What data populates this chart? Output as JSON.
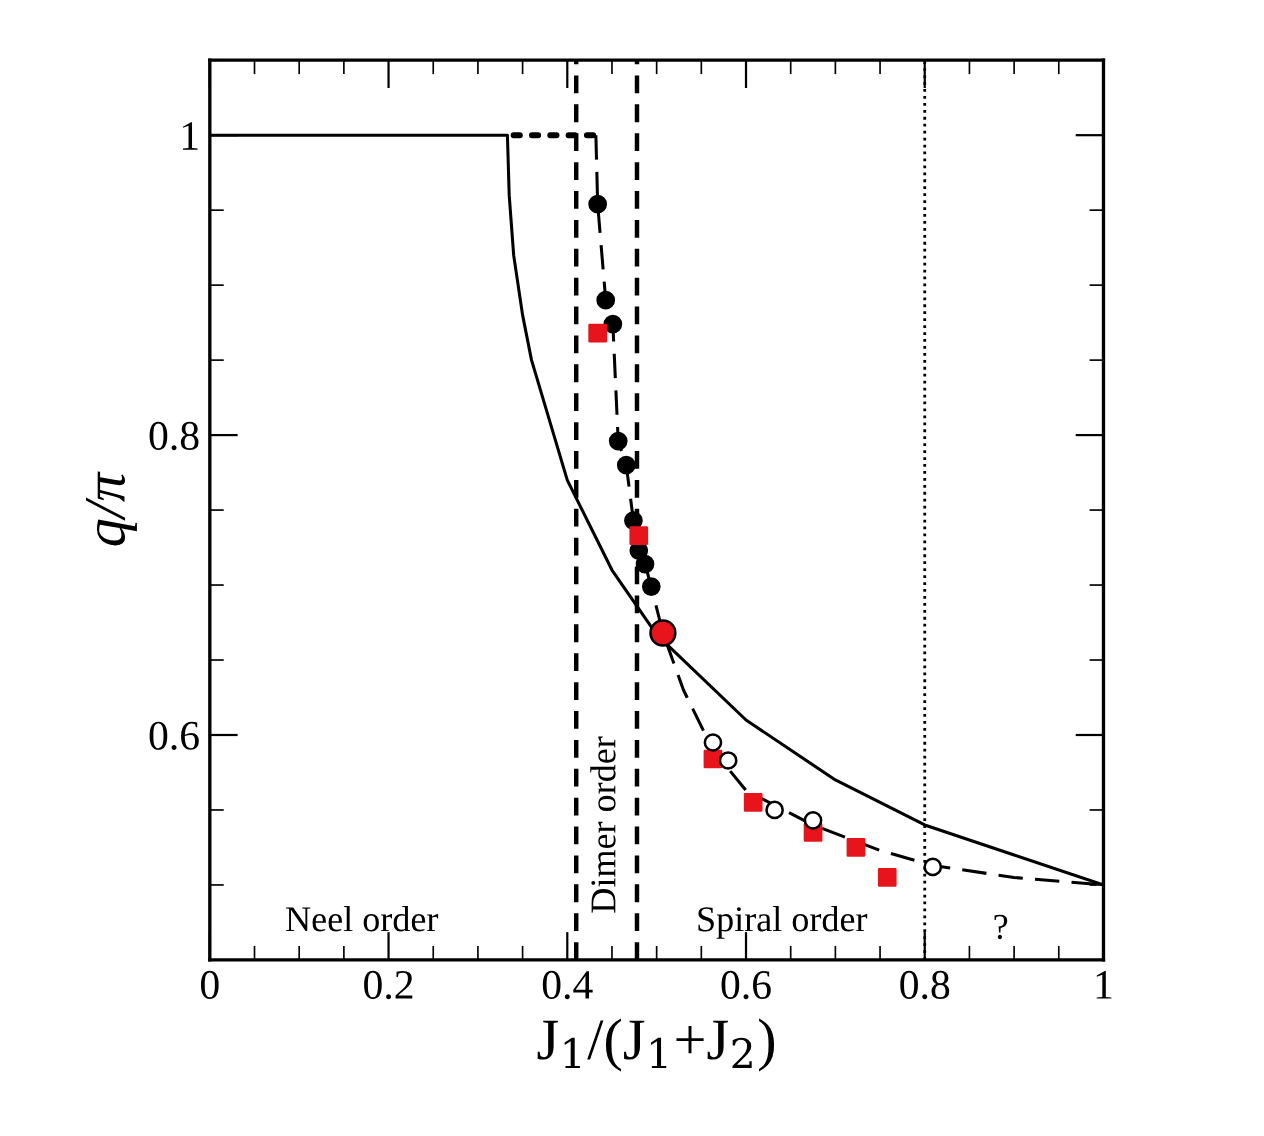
{
  "chart_data": {
    "type": "line",
    "xlabel": "J$_{1}$/(J$_{1}$+J$_{2}$)",
    "ylabel": "q/π",
    "xlim": [
      0,
      1
    ],
    "ylim": [
      0.45,
      1.05
    ],
    "xticks": [
      0,
      {
        "value": 0.05,
        "label": null
      },
      {
        "value": 0.1,
        "label": null
      },
      {
        "value": 0.15,
        "label": null
      },
      0.2,
      {
        "value": 0.25,
        "label": null
      },
      {
        "value": 0.3,
        "label": null
      },
      {
        "value": 0.35,
        "label": null
      },
      0.4,
      {
        "value": 0.45,
        "label": null
      },
      {
        "value": 0.5,
        "label": null
      },
      {
        "value": 0.55,
        "label": null
      },
      0.6,
      {
        "value": 0.65,
        "label": null
      },
      {
        "value": 0.7,
        "label": null
      },
      {
        "value": 0.75,
        "label": null
      },
      0.8,
      {
        "value": 0.85,
        "label": null
      },
      {
        "value": 0.9,
        "label": null
      },
      {
        "value": 0.95,
        "label": null
      },
      1
    ],
    "yticks": [
      {
        "value": 0.45,
        "label": null
      },
      {
        "value": 0.5,
        "label": null
      },
      {
        "value": 0.55,
        "label": null
      },
      0.6,
      {
        "value": 0.65,
        "label": null
      },
      {
        "value": 0.7,
        "label": null
      },
      {
        "value": 0.75,
        "label": null
      },
      0.8,
      {
        "value": 0.85,
        "label": null
      },
      {
        "value": 0.9,
        "label": null
      },
      {
        "value": 0.95,
        "label": null
      },
      1,
      {
        "value": 1.05,
        "label": null
      }
    ],
    "grid": false,
    "legend": false,
    "series": [
      {
        "line_style": "solid",
        "color": "#000000",
        "x": [
          0,
          0.333,
          0.335,
          0.34,
          0.35,
          0.36,
          0.385,
          0.4,
          0.45,
          0.5,
          0.6,
          0.7,
          0.8,
          0.9,
          1
        ],
        "values": [
          1,
          1,
          0.96,
          0.92,
          0.88,
          0.85,
          0.8,
          0.77,
          0.71,
          0.667,
          0.61,
          0.57,
          0.54,
          0.52,
          0.5
        ]
      },
      {
        "line_style": "dotted",
        "color": "#000000",
        "x": [
          0.34,
          0.432
        ],
        "values": [
          1,
          1
        ]
      },
      {
        "line_style": "dashed",
        "color": "#000000",
        "x": [
          0.432,
          0.434,
          0.443,
          0.451,
          0.457,
          0.466,
          0.474,
          0.48,
          0.487,
          0.494,
          0.507,
          0.53,
          0.563,
          0.6,
          0.675,
          0.75,
          0.809,
          0.9,
          1
        ],
        "values": [
          1,
          0.954,
          0.89,
          0.874,
          0.796,
          0.78,
          0.743,
          0.723,
          0.714,
          0.699,
          0.668,
          0.63,
          0.59,
          0.563,
          0.54,
          0.523,
          0.513,
          0.505,
          0.5
        ]
      },
      {
        "type": "scatter",
        "marker": "circle",
        "color": "#000000",
        "x": [
          0.434,
          0.443,
          0.451,
          0.457,
          0.466,
          0.474,
          0.48,
          0.487,
          0.494
        ],
        "values": [
          0.954,
          0.89,
          0.874,
          0.796,
          0.78,
          0.743,
          0.723,
          0.714,
          0.699
        ]
      },
      {
        "type": "scatter",
        "marker": "square",
        "color": "#e8141b",
        "x": [
          0.434,
          0.48,
          0.563,
          0.608,
          0.675,
          0.723,
          0.758
        ],
        "values": [
          0.868,
          0.733,
          0.584,
          0.555,
          0.535,
          0.525,
          0.505
        ]
      },
      {
        "type": "scatter",
        "marker": "circle",
        "color": "#ffffff",
        "x": [
          0.563,
          0.58,
          0.632,
          0.675,
          0.809
        ],
        "values": [
          0.595,
          0.583,
          0.55,
          0.543,
          0.512
        ]
      },
      {
        "type": "scatter",
        "marker": "circle",
        "color": "#e8141b",
        "x": [
          0.507
        ],
        "values": [
          0.668
        ]
      }
    ],
    "ref_lines": [
      {
        "axis": "x",
        "value": 0.41,
        "line_style": "dashed",
        "color": "#000000"
      },
      {
        "axis": "x",
        "value": 0.478,
        "line_style": "dashed",
        "color": "#000000"
      },
      {
        "axis": "x",
        "value": 0.8,
        "line_style": "dotted",
        "color": "#000000"
      }
    ],
    "annotations": [
      "Neel order",
      "Dimer order",
      "Spiral order",
      "?"
    ]
  }
}
